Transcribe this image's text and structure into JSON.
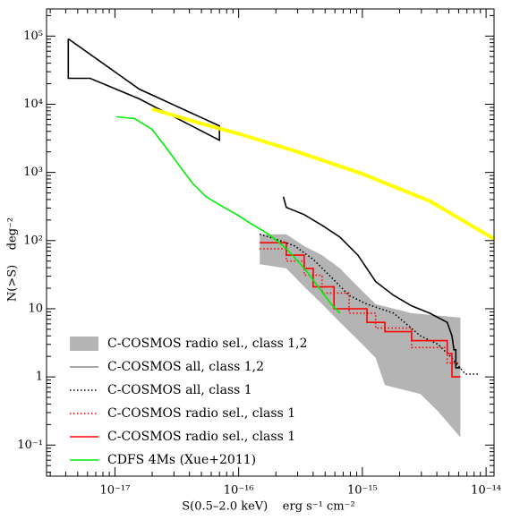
{
  "chart_data": {
    "type": "line",
    "xlabel": "S(0.5–2.0 keV)    erg s⁻¹ cm⁻²",
    "ylabel": "N(>S)    deg⁻²",
    "xscale": "log",
    "yscale": "log",
    "xlim": [
      2.8e-18,
      1.16e-14
    ],
    "ylim": [
      0.035,
      250000
    ],
    "xticks": [
      {
        "value": 1e-17,
        "label": "10⁻¹⁷"
      },
      {
        "value": 1e-16,
        "label": "10⁻¹⁶"
      },
      {
        "value": 1e-15,
        "label": "10⁻¹⁵"
      },
      {
        "value": 1e-14,
        "label": "10⁻¹⁴"
      }
    ],
    "yticks": [
      {
        "value": 0.1,
        "label": "10⁻¹"
      },
      1,
      10,
      {
        "value": 100,
        "label": "10²"
      },
      {
        "value": 1000,
        "label": "10³"
      },
      {
        "value": 10000,
        "label": "10⁴"
      },
      {
        "value": 100000,
        "label": "10⁵"
      }
    ],
    "legend": "lower left",
    "series": [
      {
        "kind": "band",
        "name": "C-COSMOS radio sel., class 1,2",
        "color": "#b4b4b4",
        "label_color": "#ff0000",
        "x": [
          1.48e-16,
          2.43e-16,
          3.39e-16,
          4.73e-16,
          6.6e-16,
          9.2e-16,
          1.28e-15,
          2.5e-15,
          6.2e-15,
          6.2e-15,
          4.1e-15,
          2.95e-15,
          1.52e-15,
          1.28e-15,
          9.2e-16,
          6.6e-16,
          4.73e-16,
          3.39e-16,
          2.43e-16,
          1.75e-16,
          1.48e-16
        ],
        "values": [
          124,
          124,
          83,
          61,
          39,
          21,
          11.7,
          8.6,
          7.4,
          0.13,
          0.31,
          0.56,
          0.76,
          1.9,
          3.5,
          6.3,
          11.7,
          21,
          39,
          43,
          45
        ]
      },
      {
        "kind": "polygon",
        "color": "#000000",
        "x": [
          4.2e-18,
          1.57e-17,
          7e-17,
          7e-17,
          1.57e-17,
          6.3e-18,
          4.2e-18,
          4.2e-18
        ],
        "values": [
          91000,
          16700,
          4800,
          2960,
          12000,
          24000,
          24000,
          91000
        ]
      },
      {
        "name": "C-COSMOS all, class 1,2",
        "color": "#000000",
        "legend_color": "#888888",
        "label_color": "#000000",
        "x": [
          2.3e-16,
          2.43e-16,
          3.39e-16,
          4.73e-16,
          6.6e-16,
          9.2e-16,
          1.28e-15,
          1.79e-15,
          2.5e-15,
          3.5e-15,
          4.85e-15,
          5.3e-15,
          5.5e-15,
          5.7e-15,
          5.7e-15,
          6.2e-15
        ],
        "values": [
          440,
          307,
          240,
          167,
          112,
          61,
          25,
          15.7,
          11,
          8.6,
          6.3,
          4,
          2.5,
          2.5,
          1.36,
          1.36
        ]
      },
      {
        "name": "C-COSMOS all, class 1",
        "color": "#000000",
        "dash": "dotted",
        "label_color": "#000000",
        "x": [
          1.48e-16,
          2.06e-16,
          2.86e-16,
          4e-16,
          5.6e-16,
          7.8e-16,
          1.09e-15,
          1.79e-15,
          2.95e-15,
          4.1e-15,
          5.3e-15,
          6.8e-15,
          8.7e-15
        ],
        "values": [
          124,
          103,
          83,
          53,
          29,
          15.7,
          11.7,
          8.6,
          4,
          3,
          1.89,
          1.1,
          1.1
        ]
      },
      {
        "name": "C-COSMOS radio sel., class 1",
        "color": "#ff0000",
        "dash": "dotted",
        "label_color": "#ff0000",
        "x": [
          1.48e-16,
          2.43e-16,
          2.43e-16,
          3.39e-16,
          3.39e-16,
          4.73e-16,
          4.73e-16,
          7.8e-16,
          7.8e-16,
          1.28e-15,
          1.28e-15,
          2.5e-15,
          2.5e-15,
          4.85e-15,
          4.85e-15,
          6.2e-15
        ],
        "values": [
          76,
          76,
          50,
          50,
          31,
          31,
          17,
          17,
          8.6,
          8.6,
          5.2,
          5.2,
          2.7,
          2.7,
          1.6,
          1.6
        ]
      },
      {
        "name": "C-COSMOS radio sel., class 1",
        "color": "#ff0000",
        "label_color": "#ff0000",
        "x": [
          1.48e-16,
          2.43e-16,
          2.43e-16,
          3.39e-16,
          3.39e-16,
          4e-16,
          4e-16,
          5.9e-16,
          5.9e-16,
          1.09e-15,
          1.09e-15,
          1.52e-15,
          1.52e-15,
          2.5e-15,
          2.5e-15,
          4.85e-15,
          4.85e-15,
          5.3e-15,
          5.3e-15,
          6.2e-15
        ],
        "values": [
          93,
          93,
          61,
          61,
          39,
          39,
          21,
          21,
          10,
          10,
          6.3,
          6.3,
          4.6,
          4.6,
          3.4,
          3.4,
          2.2,
          2.2,
          1,
          1
        ]
      },
      {
        "name": "CDFS 4Ms (Xue+2011)",
        "color": "#00ee00",
        "label_color": "#00ee00",
        "x": [
          1.03e-17,
          1.44e-17,
          2e-17,
          2.58e-17,
          3.3e-17,
          4.25e-17,
          5.45e-17,
          7.6e-17,
          9.7e-17,
          1.25e-16,
          1.75e-16,
          2.44e-16,
          3.4e-16,
          4.4e-16,
          5.6e-16,
          6.6e-16
        ],
        "values": [
          6550,
          6160,
          4270,
          2340,
          1270,
          690,
          440,
          307,
          240,
          178,
          124,
          76,
          39,
          21,
          11.7,
          8.6
        ]
      },
      {
        "color": "#ffff00",
        "width": 4,
        "x": [
          2e-17,
          5e-17,
          1e-16,
          3e-16,
          1e-15,
          3.5e-15,
          1.16e-14
        ],
        "values": [
          8500,
          5200,
          3700,
          2000,
          950,
          380,
          106
        ]
      }
    ]
  }
}
